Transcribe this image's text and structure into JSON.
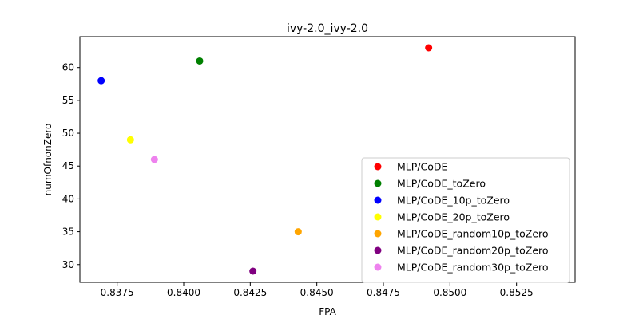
{
  "chart_data": {
    "type": "scatter",
    "title": "ivy-2.0_ivy-2.0",
    "xlabel": "FPA",
    "ylabel": "numOfnonZero",
    "xlim": [
      0.8361,
      0.8547
    ],
    "ylim": [
      27.3,
      64.7
    ],
    "xticks": [
      "0.8375",
      "0.8400",
      "0.8425",
      "0.8450",
      "0.8475",
      "0.8500",
      "0.8525"
    ],
    "yticks": [
      "30",
      "35",
      "40",
      "45",
      "50",
      "55",
      "60"
    ],
    "grid": false,
    "legend_position": "lower-right",
    "series": [
      {
        "name": "MLP/CoDE",
        "color": "#ff0000",
        "points": [
          {
            "x": 0.8492,
            "y": 63
          }
        ]
      },
      {
        "name": "MLP/CoDE_toZero",
        "color": "#008000",
        "points": [
          {
            "x": 0.8406,
            "y": 61
          }
        ]
      },
      {
        "name": "MLP/CoDE_10p_toZero",
        "color": "#0000ff",
        "points": [
          {
            "x": 0.8369,
            "y": 58
          }
        ]
      },
      {
        "name": "MLP/CoDE_20p_toZero",
        "color": "#ffff00",
        "points": [
          {
            "x": 0.838,
            "y": 49
          }
        ]
      },
      {
        "name": "MLP/CoDE_random10p_toZero",
        "color": "#ffa500",
        "points": [
          {
            "x": 0.8443,
            "y": 35
          }
        ]
      },
      {
        "name": "MLP/CoDE_random20p_toZero",
        "color": "#800080",
        "points": [
          {
            "x": 0.8426,
            "y": 29
          }
        ]
      },
      {
        "name": "MLP/CoDE_random30p_toZero",
        "color": "#ee82ee",
        "points": [
          {
            "x": 0.8389,
            "y": 46
          }
        ]
      }
    ]
  }
}
